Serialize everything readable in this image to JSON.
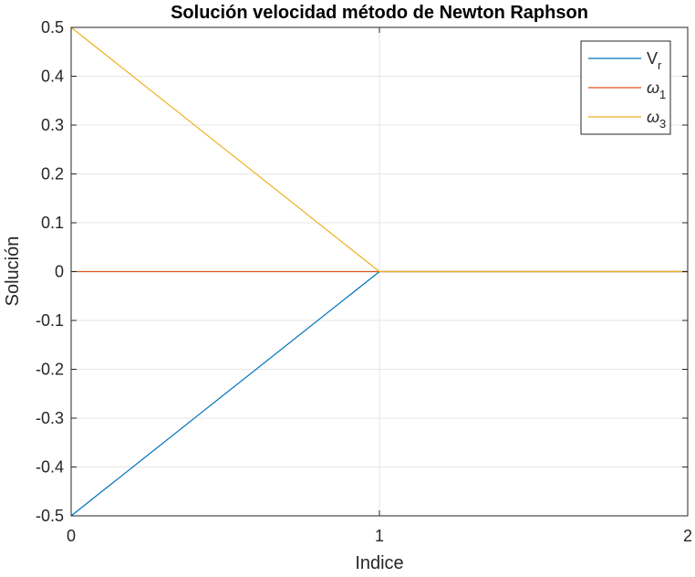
{
  "chart_data": {
    "type": "line",
    "title": "Solución velocidad método de Newton Raphson",
    "xlabel": "Indice",
    "ylabel": "Solución",
    "xlim": [
      0,
      2
    ],
    "ylim": [
      -0.5,
      0.5
    ],
    "xticks": [
      0,
      1,
      2
    ],
    "xtick_labels": [
      "0",
      "1",
      "2"
    ],
    "yticks": [
      0.5,
      0.4,
      0.3,
      0.2,
      0.1,
      0,
      -0.1,
      -0.2,
      -0.3,
      -0.4,
      -0.5
    ],
    "ytick_labels": [
      "0.5",
      "0.4",
      "0.3",
      "0.2",
      "0.1",
      "0",
      "-0.1",
      "-0.2",
      "-0.3",
      "-0.4",
      "-0.5"
    ],
    "grid": true,
    "legend_position": "top-right",
    "series": [
      {
        "name": "V",
        "subscript": "r",
        "greek": false,
        "color": "#0072BD",
        "x": [
          0,
          1,
          2
        ],
        "y": [
          -0.5,
          0,
          0
        ]
      },
      {
        "name": "ω",
        "subscript": "1",
        "greek": true,
        "color": "#D95319",
        "x": [
          0,
          1,
          2
        ],
        "y": [
          0,
          0,
          0
        ]
      },
      {
        "name": "ω",
        "subscript": "3",
        "greek": true,
        "color": "#EDB120",
        "x": [
          0,
          1,
          2
        ],
        "y": [
          0.5,
          0,
          0
        ]
      }
    ]
  }
}
